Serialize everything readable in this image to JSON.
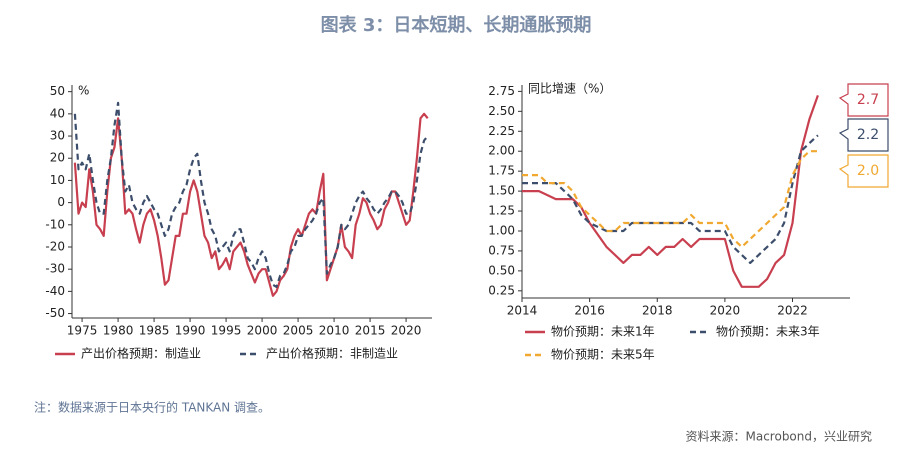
{
  "title": "图表 3：日本短期、长期通胀预期",
  "note": "注：数据来源于日本央行的 TANKAN 调查。",
  "source": "资料来源：Macrobond，兴业研究",
  "chart_data": [
    {
      "type": "line",
      "y_label": "%",
      "x": [
        1974,
        1974.5,
        1975,
        1975.5,
        1976,
        1976.5,
        1977,
        1977.5,
        1978,
        1978.5,
        1979,
        1979.5,
        1980,
        1980.5,
        1981,
        1981.5,
        1982,
        1982.5,
        1983,
        1983.5,
        1984,
        1984.5,
        1985,
        1985.5,
        1986,
        1986.5,
        1987,
        1987.5,
        1988,
        1988.5,
        1989,
        1989.5,
        1990,
        1990.5,
        1991,
        1991.5,
        1992,
        1992.5,
        1993,
        1993.5,
        1994,
        1994.5,
        1995,
        1995.5,
        1996,
        1996.5,
        1997,
        1997.5,
        1998,
        1998.5,
        1999,
        1999.5,
        2000,
        2000.5,
        2001,
        2001.5,
        2002,
        2002.5,
        2003,
        2003.5,
        2004,
        2004.5,
        2005,
        2005.5,
        2006,
        2006.5,
        2007,
        2007.5,
        2008,
        2008.5,
        2009,
        2009.5,
        2010,
        2010.5,
        2011,
        2011.5,
        2012,
        2012.5,
        2013,
        2013.5,
        2014,
        2014.5,
        2015,
        2015.5,
        2016,
        2016.5,
        2017,
        2017.5,
        2018,
        2018.5,
        2019,
        2019.5,
        2020,
        2020.5,
        2021,
        2021.5,
        2022,
        2022.5,
        2023
      ],
      "series": [
        {
          "name": "产出价格预期：制造业",
          "color": "#c8404f",
          "line_style": "solid",
          "values": [
            18,
            -5,
            0,
            -2,
            15,
            5,
            -10,
            -12,
            -15,
            5,
            20,
            25,
            38,
            20,
            -5,
            -3,
            -5,
            -12,
            -18,
            -10,
            -5,
            -3,
            -8,
            -15,
            -25,
            -37,
            -35,
            -25,
            -15,
            -15,
            -5,
            -5,
            5,
            10,
            5,
            -5,
            -15,
            -18,
            -25,
            -22,
            -30,
            -28,
            -25,
            -30,
            -22,
            -20,
            -18,
            -22,
            -28,
            -32,
            -36,
            -32,
            -30,
            -30,
            -36,
            -42,
            -40,
            -35,
            -33,
            -30,
            -20,
            -15,
            -12,
            -15,
            -10,
            -5,
            -3,
            -5,
            5,
            13,
            -35,
            -30,
            -25,
            -20,
            -10,
            -20,
            -22,
            -25,
            -10,
            -5,
            2,
            0,
            -5,
            -8,
            -12,
            -10,
            -3,
            0,
            5,
            5,
            0,
            -5,
            -10,
            -8,
            5,
            20,
            38,
            40,
            38
          ]
        },
        {
          "name": "产出价格预期：非制造业",
          "color": "#3c4e6b",
          "line_style": "dashed",
          "values": [
            40,
            15,
            18,
            15,
            22,
            10,
            0,
            -5,
            -5,
            10,
            20,
            35,
            45,
            20,
            5,
            8,
            0,
            -3,
            -5,
            0,
            3,
            0,
            -3,
            -5,
            -10,
            -15,
            -12,
            -5,
            -2,
            0,
            5,
            8,
            15,
            20,
            22,
            10,
            0,
            -5,
            -12,
            -15,
            -22,
            -20,
            -18,
            -22,
            -15,
            -12,
            -12,
            -18,
            -25,
            -27,
            -30,
            -25,
            -22,
            -25,
            -32,
            -37,
            -38,
            -33,
            -32,
            -28,
            -22,
            -20,
            -15,
            -15,
            -12,
            -10,
            -8,
            -5,
            0,
            2,
            -32,
            -28,
            -25,
            -20,
            -10,
            -12,
            -10,
            -5,
            0,
            3,
            5,
            2,
            0,
            -3,
            -5,
            -3,
            0,
            2,
            5,
            5,
            3,
            0,
            -5,
            -5,
            0,
            10,
            22,
            28,
            30
          ]
        }
      ],
      "xlim": [
        1973.6,
        2023.6
      ],
      "xticks": [
        1975,
        1980,
        1985,
        1990,
        1995,
        2000,
        2005,
        2010,
        2015,
        2020
      ],
      "ylim": [
        -52,
        53
      ],
      "yticks": [
        -50,
        -40,
        -30,
        -20,
        -10,
        0,
        10,
        20,
        30,
        40,
        50
      ]
    },
    {
      "type": "line",
      "y_label": "同比增速（%）",
      "x": [
        2014,
        2014.25,
        2014.5,
        2014.75,
        2015,
        2015.25,
        2015.5,
        2015.75,
        2016,
        2016.25,
        2016.5,
        2016.75,
        2017,
        2017.25,
        2017.5,
        2017.75,
        2018,
        2018.25,
        2018.5,
        2018.75,
        2019,
        2019.25,
        2019.5,
        2019.75,
        2020,
        2020.25,
        2020.5,
        2020.75,
        2021,
        2021.25,
        2021.5,
        2021.75,
        2022,
        2022.25,
        2022.5,
        2022.75
      ],
      "series": [
        {
          "name": "物价预期：未来1年",
          "color": "#c8404f",
          "line_style": "solid",
          "values": [
            1.5,
            1.5,
            1.5,
            1.45,
            1.4,
            1.4,
            1.4,
            1.3,
            1.1,
            0.95,
            0.8,
            0.7,
            0.6,
            0.7,
            0.7,
            0.8,
            0.7,
            0.8,
            0.8,
            0.9,
            0.8,
            0.9,
            0.9,
            0.9,
            0.9,
            0.5,
            0.3,
            0.3,
            0.3,
            0.4,
            0.6,
            0.7,
            1.1,
            2.0,
            2.4,
            2.7
          ],
          "value_labels": [
            null,
            null,
            null,
            null,
            null,
            null,
            null,
            null,
            null,
            null,
            null,
            null,
            null,
            null,
            null,
            null,
            null,
            null,
            null,
            null,
            null,
            null,
            null,
            null,
            null,
            null,
            null,
            null,
            null,
            null,
            null,
            null,
            null,
            null,
            null,
            "2.7"
          ]
        },
        {
          "name": "物价预期：未来3年",
          "color": "#3c4e6b",
          "line_style": "dashed",
          "values": [
            1.6,
            1.6,
            1.6,
            1.6,
            1.6,
            1.5,
            1.4,
            1.2,
            1.1,
            1.05,
            1.0,
            1.0,
            1.0,
            1.1,
            1.1,
            1.1,
            1.1,
            1.1,
            1.1,
            1.1,
            1.1,
            1.0,
            1.0,
            1.0,
            1.0,
            0.8,
            0.7,
            0.6,
            0.7,
            0.8,
            0.9,
            1.1,
            1.6,
            2.0,
            2.1,
            2.2
          ],
          "value_labels": [
            null,
            null,
            null,
            null,
            null,
            null,
            null,
            null,
            null,
            null,
            null,
            null,
            null,
            null,
            null,
            null,
            null,
            null,
            null,
            null,
            null,
            null,
            null,
            null,
            null,
            null,
            null,
            null,
            null,
            null,
            null,
            null,
            null,
            null,
            null,
            "2.2"
          ]
        },
        {
          "name": "物价预期：未来5年",
          "color": "#f0a830",
          "line_style": "dashed",
          "values": [
            1.7,
            1.7,
            1.7,
            1.6,
            1.6,
            1.6,
            1.5,
            1.3,
            1.2,
            1.1,
            1.0,
            1.0,
            1.1,
            1.1,
            1.1,
            1.1,
            1.1,
            1.1,
            1.1,
            1.1,
            1.2,
            1.1,
            1.1,
            1.1,
            1.1,
            0.9,
            0.8,
            0.9,
            1.0,
            1.1,
            1.2,
            1.3,
            1.7,
            1.9,
            2.0,
            2.0
          ],
          "value_labels": [
            null,
            null,
            null,
            null,
            null,
            null,
            null,
            null,
            null,
            null,
            null,
            null,
            null,
            null,
            null,
            null,
            null,
            null,
            null,
            null,
            null,
            null,
            null,
            null,
            null,
            null,
            null,
            null,
            null,
            null,
            null,
            null,
            null,
            null,
            null,
            "2.0"
          ]
        }
      ],
      "xlim": [
        2014,
        2023.7
      ],
      "xticks": [
        2014,
        2016,
        2018,
        2020,
        2022
      ],
      "ylim": [
        0.16,
        2.83
      ],
      "yticks": [
        0.25,
        {
          "value": 0.5,
          "label": "0.50"
        },
        0.75,
        {
          "value": 1,
          "label": "1.00"
        },
        1.25,
        {
          "value": 1.5,
          "label": "1.50"
        },
        1.75,
        {
          "value": 2,
          "label": "2.00"
        },
        2.25,
        {
          "value": 2.5,
          "label": "2.50"
        },
        2.75
      ]
    }
  ]
}
